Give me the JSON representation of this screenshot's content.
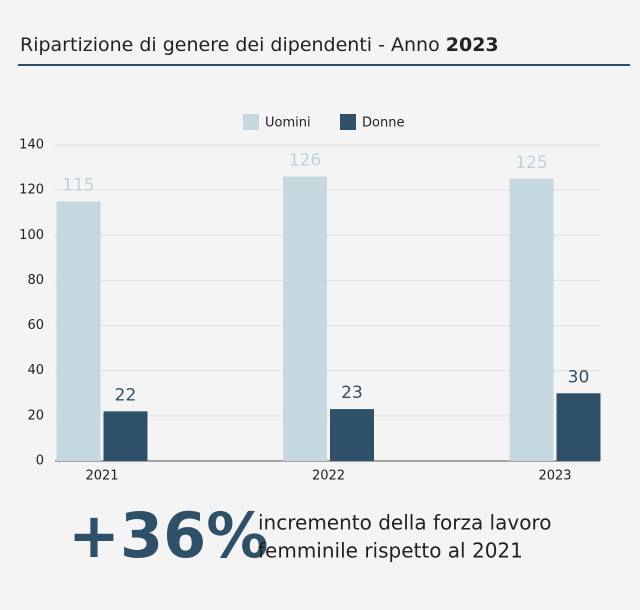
{
  "chart_data": {
    "type": "bar",
    "title": "Ripartizione di genere dei dipendenti - Anno",
    "title_year": "2023",
    "categories": [
      "2021",
      "2022",
      "2023"
    ],
    "series": [
      {
        "name": "Uomini",
        "color": "#c5d8e0",
        "values": [
          115,
          126,
          125
        ]
      },
      {
        "name": "Donne",
        "color": "#2f5069",
        "values": [
          22,
          23,
          30
        ]
      }
    ],
    "ylim": [
      0,
      140
    ],
    "yticks": [
      0,
      20,
      40,
      60,
      80,
      100,
      120,
      140
    ],
    "grid": true,
    "legend": "top"
  },
  "highlight": {
    "value": "+36%",
    "lines": [
      "incremento della forza lavoro",
      "femminile rispetto al 2021"
    ]
  }
}
